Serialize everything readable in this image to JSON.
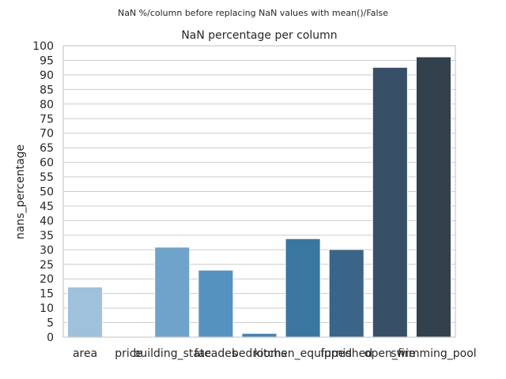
{
  "figure": {
    "suptitle": "NaN %/column before replacing NaN values with mean()/False"
  },
  "chart_data": {
    "type": "bar",
    "title": "NaN percentage per column",
    "xlabel": "",
    "ylabel": "nans_percentage",
    "categories": [
      "area",
      "price",
      "building_state",
      "facades",
      "bedrooms",
      "kitchen_equipped",
      "furnished",
      "open_fire",
      "swimming_pool"
    ],
    "values": [
      17.2,
      0.0,
      30.9,
      23.0,
      1.3,
      33.8,
      30.1,
      92.6,
      96.2
    ],
    "colors": [
      "#9fc1dc",
      "#8ab3d4",
      "#6fa3c9",
      "#5592bf",
      "#4583b0",
      "#3b76a1",
      "#3a6589",
      "#375068",
      "#33414d"
    ],
    "ylim": [
      0,
      100
    ],
    "yticks": [
      0,
      5,
      10,
      15,
      20,
      25,
      30,
      35,
      40,
      45,
      50,
      55,
      60,
      65,
      70,
      75,
      80,
      85,
      90,
      95,
      100
    ],
    "grid": true,
    "legend": "none"
  }
}
